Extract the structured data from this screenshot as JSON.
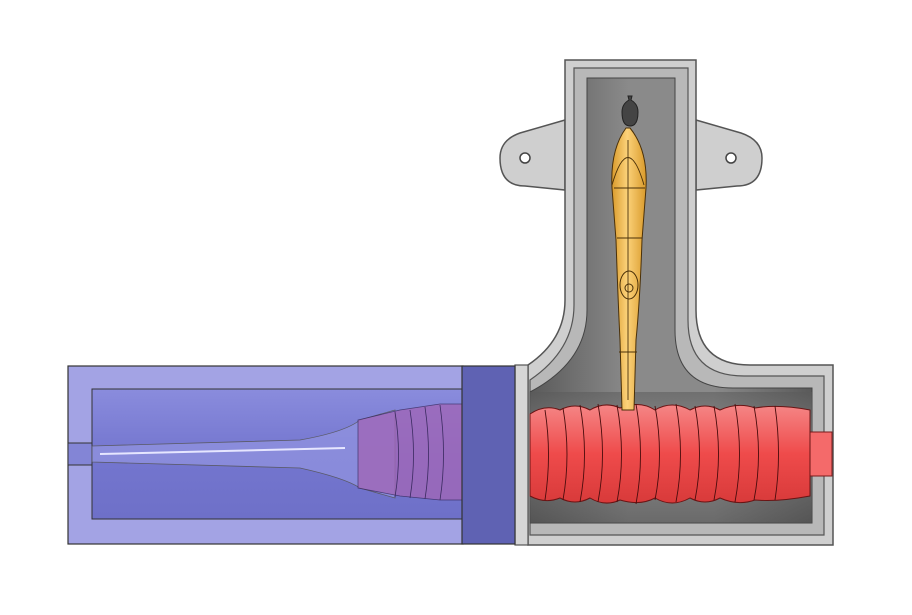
{
  "scene": {
    "background": "#ffffff",
    "colors": {
      "housing_gray": "#cfcfcf",
      "housing_edge": "#555555",
      "cavity_dark": "#4a4a4a",
      "blue_body": "#9b9be0",
      "blue_dark": "#6466b8",
      "blue_inner": "#7d80d6",
      "worm_red": "#ef4b4b",
      "worm_pink": "#f58686",
      "gear_orange": "#f5b942",
      "gear_light": "#fcd27a"
    },
    "parts": [
      {
        "id": "gray-housing",
        "icon": "housing-shape"
      },
      {
        "id": "blue-motor-housing",
        "icon": "cylinder-housing"
      },
      {
        "id": "red-worm-shaft",
        "icon": "worm-screw"
      },
      {
        "id": "orange-shaft",
        "icon": "spindle"
      }
    ]
  }
}
